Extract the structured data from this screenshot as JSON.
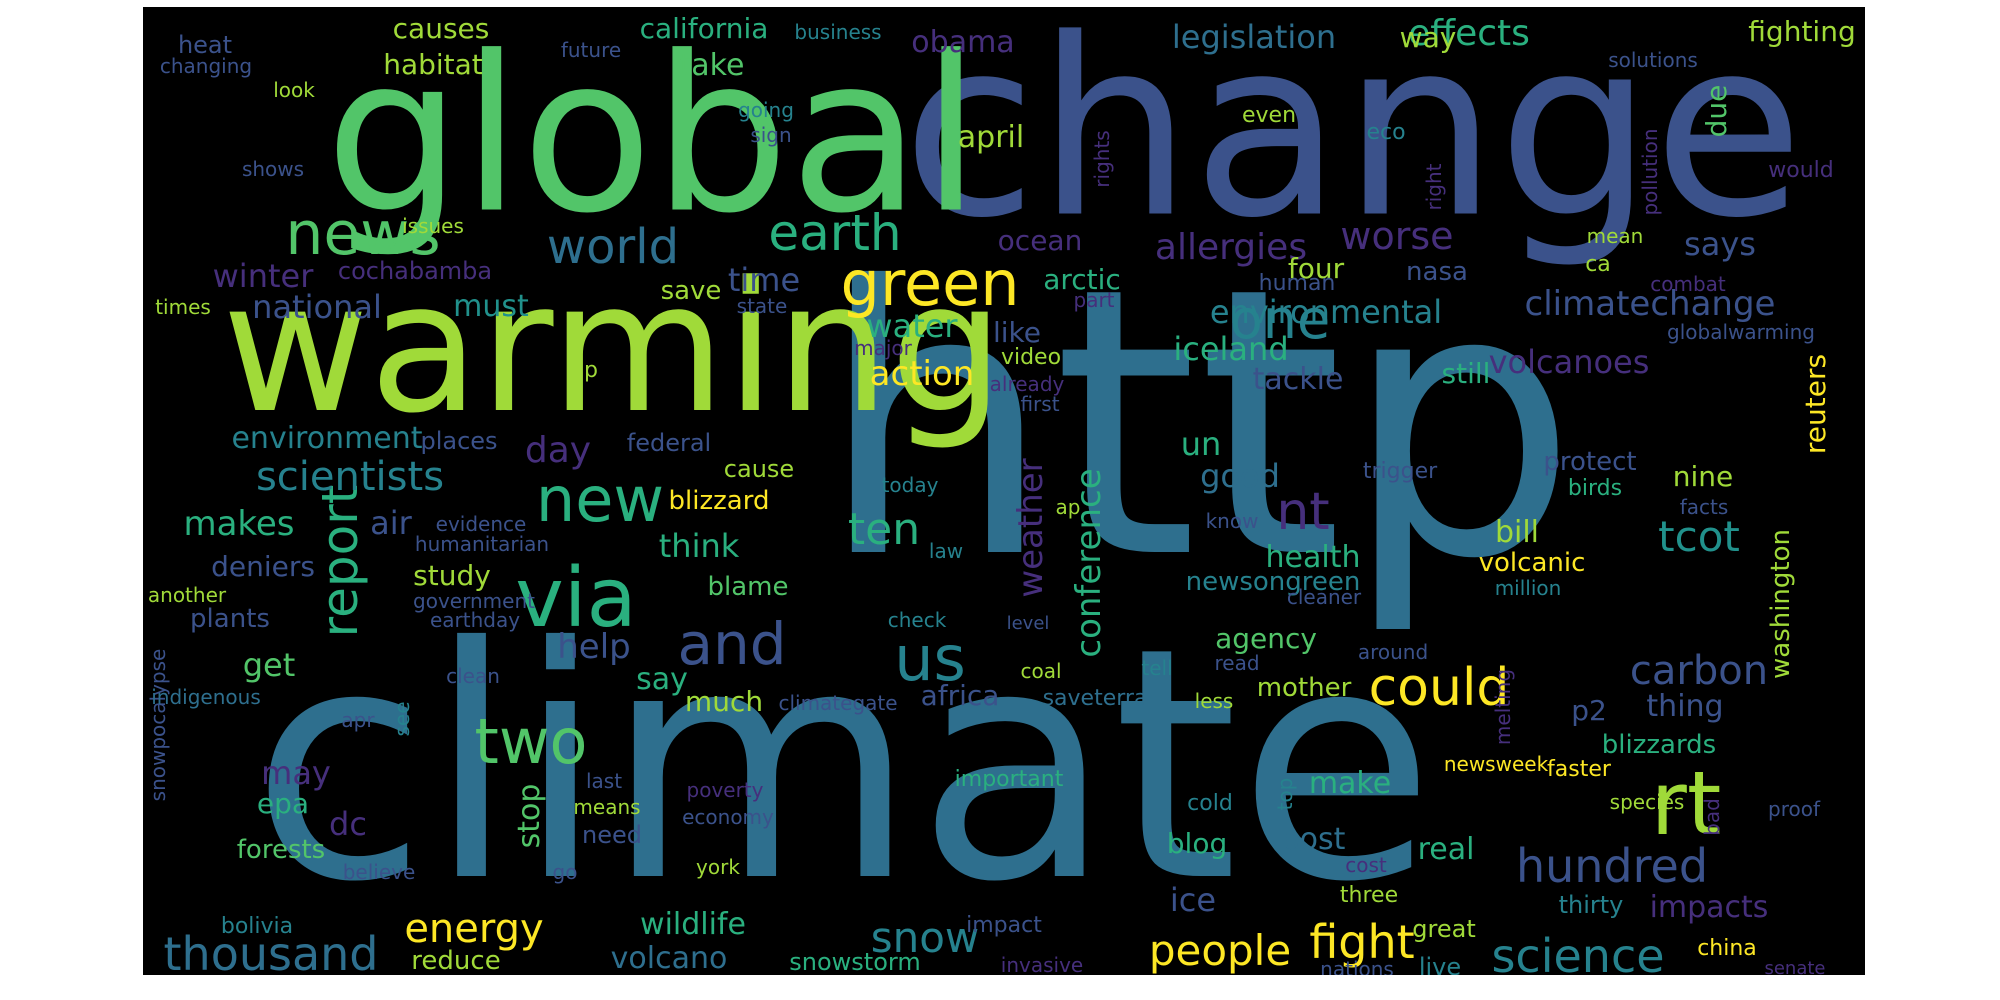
{
  "palette": {
    "purple": "#462f7c",
    "indigo": "#3b528b",
    "blue": "#2e6f8e",
    "teal": "#26828e",
    "tealgreen": "#21918c",
    "green": "#2ab07f",
    "lightgreen": "#52c569",
    "yellowgreen": "#a0da39",
    "yellow": "#fde725",
    "darkpurple": "#440154"
  },
  "words": [
    {
      "t": "http",
      "c": "blue",
      "rot": 0
    },
    {
      "t": "climate",
      "c": "blue",
      "rot": 0
    },
    {
      "t": "change",
      "c": "indigo",
      "rot": 0
    },
    {
      "t": "global",
      "c": "lightgreen",
      "rot": 0
    },
    {
      "t": "warming",
      "c": "yellowgreen",
      "rot": 0
    },
    {
      "t": "news",
      "c": "lightgreen",
      "rot": 0
    },
    {
      "t": "world",
      "c": "blue",
      "rot": 0
    },
    {
      "t": "earth",
      "c": "green",
      "rot": 0
    },
    {
      "t": "green",
      "c": "yellow",
      "rot": 0
    },
    {
      "t": "one",
      "c": "teal",
      "rot": 0
    },
    {
      "t": "new",
      "c": "green",
      "rot": 0
    },
    {
      "t": "via",
      "c": "green",
      "rot": 0
    },
    {
      "t": "and",
      "c": "indigo",
      "rot": 0
    },
    {
      "t": "us",
      "c": "teal",
      "rot": 0
    },
    {
      "t": "two",
      "c": "lightgreen",
      "rot": 0
    },
    {
      "t": "rt",
      "c": "yellowgreen",
      "rot": 0
    },
    {
      "t": "could",
      "c": "yellow",
      "rot": 0
    },
    {
      "t": "nt",
      "c": "purple",
      "rot": 0
    },
    {
      "t": "report",
      "c": "green",
      "rot": 90
    },
    {
      "t": "thousand",
      "c": "blue",
      "rot": 0
    },
    {
      "t": "hundred",
      "c": "indigo",
      "rot": 0
    },
    {
      "t": "science",
      "c": "teal",
      "rot": 0
    },
    {
      "t": "fight",
      "c": "yellow",
      "rot": 0
    },
    {
      "t": "people",
      "c": "yellow",
      "rot": 0
    },
    {
      "t": "energy",
      "c": "yellow",
      "rot": 0
    },
    {
      "t": "snow",
      "c": "teal",
      "rot": 0
    },
    {
      "t": "ten",
      "c": "green",
      "rot": 0
    },
    {
      "t": "tcot",
      "c": "tealgreen",
      "rot": 0
    },
    {
      "t": "carbon",
      "c": "indigo",
      "rot": 0
    },
    {
      "t": "weather",
      "c": "purple",
      "rot": 90
    },
    {
      "t": "conference",
      "c": "green",
      "rot": 90
    },
    {
      "t": "allergies",
      "c": "purple",
      "rot": 0
    },
    {
      "t": "worse",
      "c": "purple",
      "rot": 0
    },
    {
      "t": "climatechange",
      "c": "indigo",
      "rot": 0
    },
    {
      "t": "environmental",
      "c": "teal",
      "rot": 0
    },
    {
      "t": "scientists",
      "c": "teal",
      "rot": 0
    },
    {
      "t": "makes",
      "c": "green",
      "rot": 0
    },
    {
      "t": "action",
      "c": "yellow",
      "rot": 0
    },
    {
      "t": "iceland",
      "c": "green",
      "rot": 0
    },
    {
      "t": "volcanoes",
      "c": "purple",
      "rot": 0
    },
    {
      "t": "effects",
      "c": "green",
      "rot": 0
    },
    {
      "t": "legislation",
      "c": "blue",
      "rot": 0
    },
    {
      "t": "obama",
      "c": "purple",
      "rot": 0
    },
    {
      "t": "april",
      "c": "yellowgreen",
      "rot": 0
    },
    {
      "t": "take",
      "c": "lightgreen",
      "rot": 0
    },
    {
      "t": "habitat",
      "c": "yellowgreen",
      "rot": 0
    },
    {
      "t": "causes",
      "c": "yellowgreen",
      "rot": 0
    },
    {
      "t": "california",
      "c": "green",
      "rot": 0
    },
    {
      "t": "business",
      "c": "teal",
      "rot": 0
    },
    {
      "t": "fighting",
      "c": "yellowgreen",
      "rot": 0
    },
    {
      "t": "way",
      "c": "yellowgreen",
      "rot": 0
    },
    {
      "t": "due",
      "c": "lightgreen",
      "rot": 90
    },
    {
      "t": "heat",
      "c": "indigo",
      "rot": 0
    },
    {
      "t": "changing",
      "c": "indigo",
      "rot": 0
    },
    {
      "t": "future",
      "c": "indigo",
      "rot": 0
    },
    {
      "t": "going",
      "c": "teal",
      "rot": 0
    },
    {
      "t": "solutions",
      "c": "indigo",
      "rot": 0
    },
    {
      "t": "look",
      "c": "yellowgreen",
      "rot": 0
    },
    {
      "t": "sign",
      "c": "indigo",
      "rot": 0
    },
    {
      "t": "shows",
      "c": "indigo",
      "rot": 0
    },
    {
      "t": "issues",
      "c": "yellowgreen",
      "rot": 0
    },
    {
      "t": "rights",
      "c": "purple",
      "rot": 90
    },
    {
      "t": "even",
      "c": "yellowgreen",
      "rot": 0
    },
    {
      "t": "eco",
      "c": "teal",
      "rot": 0
    },
    {
      "t": "right",
      "c": "purple",
      "rot": 90
    },
    {
      "t": "pollution",
      "c": "purple",
      "rot": 90
    },
    {
      "t": "would",
      "c": "purple",
      "rot": 0
    },
    {
      "t": "mean",
      "c": "yellowgreen",
      "rot": 0
    },
    {
      "t": "says",
      "c": "indigo",
      "rot": 0
    },
    {
      "t": "winter",
      "c": "purple",
      "rot": 0
    },
    {
      "t": "cochabamba",
      "c": "purple",
      "rot": 0
    },
    {
      "t": "time",
      "c": "indigo",
      "rot": 0
    },
    {
      "t": "arctic",
      "c": "green",
      "rot": 0
    },
    {
      "t": "ocean",
      "c": "purple",
      "rot": 0
    },
    {
      "t": "four",
      "c": "yellowgreen",
      "rot": 0
    },
    {
      "t": "nasa",
      "c": "indigo",
      "rot": 0
    },
    {
      "t": "ca",
      "c": "yellowgreen",
      "rot": 0
    },
    {
      "t": "combat",
      "c": "purple",
      "rot": 0
    },
    {
      "t": "national",
      "c": "indigo",
      "rot": 0
    },
    {
      "t": "must",
      "c": "tealgreen",
      "rot": 0
    },
    {
      "t": "save",
      "c": "yellowgreen",
      "rot": 0
    },
    {
      "t": "state",
      "c": "indigo",
      "rot": 0
    },
    {
      "t": "human",
      "c": "indigo",
      "rot": 0
    },
    {
      "t": "times",
      "c": "yellowgreen",
      "rot": 0
    },
    {
      "t": "part",
      "c": "purple",
      "rot": 0
    },
    {
      "t": "globalwarming",
      "c": "indigo",
      "rot": 0
    },
    {
      "t": "water",
      "c": "green",
      "rot": 0
    },
    {
      "t": "like",
      "c": "indigo",
      "rot": 0
    },
    {
      "t": "major",
      "c": "purple",
      "rot": 0
    },
    {
      "t": "video",
      "c": "yellowgreen",
      "rot": 0
    },
    {
      "t": "already",
      "c": "purple",
      "rot": 0
    },
    {
      "t": "tackle",
      "c": "indigo",
      "rot": 0
    },
    {
      "t": "still",
      "c": "green",
      "rot": 0
    },
    {
      "t": "reuters",
      "c": "yellow",
      "rot": 90
    },
    {
      "t": "p",
      "c": "yellowgreen",
      "rot": 0
    },
    {
      "t": "first",
      "c": "indigo",
      "rot": 0
    },
    {
      "t": "environment",
      "c": "teal",
      "rot": 0
    },
    {
      "t": "places",
      "c": "indigo",
      "rot": 0
    },
    {
      "t": "day",
      "c": "purple",
      "rot": 0
    },
    {
      "t": "federal",
      "c": "indigo",
      "rot": 0
    },
    {
      "t": "un",
      "c": "green",
      "rot": 0
    },
    {
      "t": "good",
      "c": "blue",
      "rot": 0
    },
    {
      "t": "trigger",
      "c": "indigo",
      "rot": 0
    },
    {
      "t": "protect",
      "c": "indigo",
      "rot": 0
    },
    {
      "t": "nine",
      "c": "yellowgreen",
      "rot": 0
    },
    {
      "t": "cause",
      "c": "yellowgreen",
      "rot": 0
    },
    {
      "t": "blizzard",
      "c": "yellow",
      "rot": 0
    },
    {
      "t": "today",
      "c": "teal",
      "rot": 0
    },
    {
      "t": "birds",
      "c": "green",
      "rot": 0
    },
    {
      "t": "air",
      "c": "indigo",
      "rot": 0
    },
    {
      "t": "evidence",
      "c": "indigo",
      "rot": 0
    },
    {
      "t": "ap",
      "c": "yellowgreen",
      "rot": 0
    },
    {
      "t": "facts",
      "c": "indigo",
      "rot": 0
    },
    {
      "t": "think",
      "c": "green",
      "rot": 0
    },
    {
      "t": "know",
      "c": "indigo",
      "rot": 0
    },
    {
      "t": "bill",
      "c": "yellowgreen",
      "rot": 0
    },
    {
      "t": "deniers",
      "c": "indigo",
      "rot": 0
    },
    {
      "t": "humanitarian",
      "c": "indigo",
      "rot": 0
    },
    {
      "t": "law",
      "c": "teal",
      "rot": 0
    },
    {
      "t": "study",
      "c": "yellowgreen",
      "rot": 0
    },
    {
      "t": "health",
      "c": "green",
      "rot": 0
    },
    {
      "t": "volcanic",
      "c": "yellow",
      "rot": 0
    },
    {
      "t": "newsongreen",
      "c": "teal",
      "rot": 0
    },
    {
      "t": "million",
      "c": "teal",
      "rot": 0
    },
    {
      "t": "washington",
      "c": "yellowgreen",
      "rot": 90
    },
    {
      "t": "another",
      "c": "yellowgreen",
      "rot": 0
    },
    {
      "t": "blame",
      "c": "lightgreen",
      "rot": 0
    },
    {
      "t": "government",
      "c": "indigo",
      "rot": 0
    },
    {
      "t": "cleaner",
      "c": "indigo",
      "rot": 0
    },
    {
      "t": "plants",
      "c": "indigo",
      "rot": 0
    },
    {
      "t": "earthday",
      "c": "indigo",
      "rot": 0
    },
    {
      "t": "check",
      "c": "teal",
      "rot": 0
    },
    {
      "t": "level",
      "c": "indigo",
      "rot": 0
    },
    {
      "t": "help",
      "c": "indigo",
      "rot": 0
    },
    {
      "t": "agency",
      "c": "lightgreen",
      "rot": 0
    },
    {
      "t": "around",
      "c": "indigo",
      "rot": 0
    },
    {
      "t": "get",
      "c": "lightgreen",
      "rot": 0
    },
    {
      "t": "read",
      "c": "indigo",
      "rot": 0
    },
    {
      "t": "tell",
      "c": "teal",
      "rot": 0
    },
    {
      "t": "coal",
      "c": "yellowgreen",
      "rot": 0
    },
    {
      "t": "snowpocalypse",
      "c": "indigo",
      "rot": 90
    },
    {
      "t": "clean",
      "c": "indigo",
      "rot": 0
    },
    {
      "t": "say",
      "c": "green",
      "rot": 0
    },
    {
      "t": "indigenous",
      "c": "blue",
      "rot": 0
    },
    {
      "t": "africa",
      "c": "indigo",
      "rot": 0
    },
    {
      "t": "saveterra",
      "c": "blue",
      "rot": 0
    },
    {
      "t": "less",
      "c": "yellowgreen",
      "rot": 0
    },
    {
      "t": "mother",
      "c": "yellowgreen",
      "rot": 0
    },
    {
      "t": "melting",
      "c": "purple",
      "rot": 90
    },
    {
      "t": "thing",
      "c": "indigo",
      "rot": 0
    },
    {
      "t": "p2",
      "c": "indigo",
      "rot": 0
    },
    {
      "t": "much",
      "c": "yellowgreen",
      "rot": 0
    },
    {
      "t": "climategate",
      "c": "indigo",
      "rot": 0
    },
    {
      "t": "apr",
      "c": "indigo",
      "rot": 0
    },
    {
      "t": "see",
      "c": "teal",
      "rot": 90
    },
    {
      "t": "blizzards",
      "c": "green",
      "rot": 0
    },
    {
      "t": "may",
      "c": "purple",
      "rot": 0
    },
    {
      "t": "newsweek",
      "c": "yellow",
      "rot": 0
    },
    {
      "t": "faster",
      "c": "yellow",
      "rot": 0
    },
    {
      "t": "stop",
      "c": "lightgreen",
      "rot": 90
    },
    {
      "t": "last",
      "c": "indigo",
      "rot": 0
    },
    {
      "t": "poverty",
      "c": "purple",
      "rot": 0
    },
    {
      "t": "important",
      "c": "green",
      "rot": 0
    },
    {
      "t": "top",
      "c": "teal",
      "rot": 90
    },
    {
      "t": "species",
      "c": "yellowgreen",
      "rot": 0
    },
    {
      "t": "proof",
      "c": "indigo",
      "rot": 0
    },
    {
      "t": "epa",
      "c": "green",
      "rot": 0
    },
    {
      "t": "means",
      "c": "yellowgreen",
      "rot": 0
    },
    {
      "t": "economy",
      "c": "indigo",
      "rot": 0
    },
    {
      "t": "make",
      "c": "green",
      "rot": 0
    },
    {
      "t": "bad",
      "c": "purple",
      "rot": 90
    },
    {
      "t": "dc",
      "c": "purple",
      "rot": 0
    },
    {
      "t": "cold",
      "c": "teal",
      "rot": 0
    },
    {
      "t": "need",
      "c": "indigo",
      "rot": 0
    },
    {
      "t": "post",
      "c": "blue",
      "rot": 0
    },
    {
      "t": "cost",
      "c": "purple",
      "rot": 0
    },
    {
      "t": "forests",
      "c": "lightgreen",
      "rot": 0
    },
    {
      "t": "blog",
      "c": "green",
      "rot": 0
    },
    {
      "t": "real",
      "c": "green",
      "rot": 0
    },
    {
      "t": "believe",
      "c": "indigo",
      "rot": 0
    },
    {
      "t": "go",
      "c": "indigo",
      "rot": 0
    },
    {
      "t": "york",
      "c": "yellowgreen",
      "rot": 0
    },
    {
      "t": "ice",
      "c": "indigo",
      "rot": 0
    },
    {
      "t": "three",
      "c": "yellowgreen",
      "rot": 0
    },
    {
      "t": "thirty",
      "c": "teal",
      "rot": 0
    },
    {
      "t": "impacts",
      "c": "purple",
      "rot": 0
    },
    {
      "t": "bolivia",
      "c": "teal",
      "rot": 0
    },
    {
      "t": "wildlife",
      "c": "green",
      "rot": 0
    },
    {
      "t": "impact",
      "c": "indigo",
      "rot": 0
    },
    {
      "t": "great",
      "c": "yellowgreen",
      "rot": 0
    },
    {
      "t": "reduce",
      "c": "yellowgreen",
      "rot": 0
    },
    {
      "t": "volcano",
      "c": "blue",
      "rot": 0
    },
    {
      "t": "snowstorm",
      "c": "green",
      "rot": 0
    },
    {
      "t": "invasive",
      "c": "purple",
      "rot": 0
    },
    {
      "t": "nations",
      "c": "indigo",
      "rot": 0
    },
    {
      "t": "live",
      "c": "teal",
      "rot": 0
    },
    {
      "t": "china",
      "c": "yellow",
      "rot": 0
    },
    {
      "t": "senate",
      "c": "purple",
      "rot": 0
    }
  ]
}
